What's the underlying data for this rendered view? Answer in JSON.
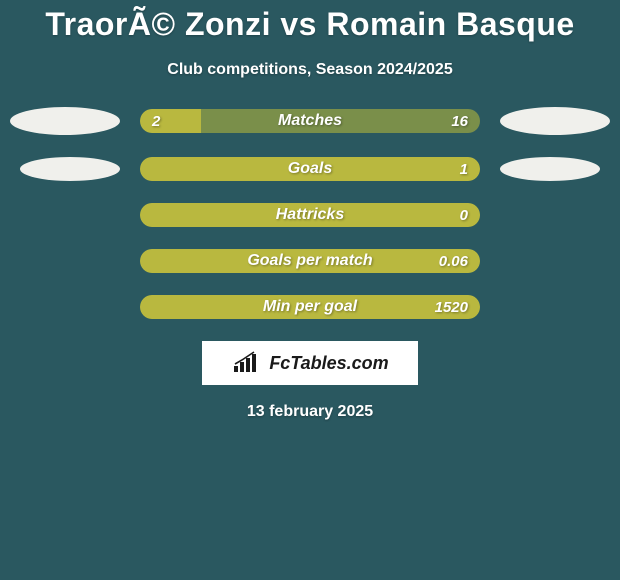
{
  "colors": {
    "page_bg": "#2a5860",
    "text_white": "#ffffff",
    "bar_track": "#7a8f4a",
    "bar_fill": "#b9b83f",
    "avatar": "#f0f0ec",
    "branding_bg": "#ffffff",
    "branding_text": "#1a1a1a"
  },
  "title": "TraorÃ© Zonzi vs Romain Basque",
  "subtitle": "Club competitions, Season 2024/2025",
  "stats": [
    {
      "label": "Matches",
      "left_value": "2",
      "right_value": "16",
      "fill_pct": 18,
      "show_left_avatar": true,
      "show_right_avatar": true,
      "avatar_size": "big"
    },
    {
      "label": "Goals",
      "left_value": "",
      "right_value": "1",
      "fill_pct": 100,
      "show_left_avatar": true,
      "show_right_avatar": true,
      "avatar_size": "small"
    },
    {
      "label": "Hattricks",
      "left_value": "",
      "right_value": "0",
      "fill_pct": 100,
      "show_left_avatar": false,
      "show_right_avatar": false
    },
    {
      "label": "Goals per match",
      "left_value": "",
      "right_value": "0.06",
      "fill_pct": 100,
      "show_left_avatar": false,
      "show_right_avatar": false
    },
    {
      "label": "Min per goal",
      "left_value": "",
      "right_value": "1520",
      "fill_pct": 100,
      "show_left_avatar": false,
      "show_right_avatar": false
    }
  ],
  "branding": "FcTables.com",
  "date": "13 february 2025"
}
